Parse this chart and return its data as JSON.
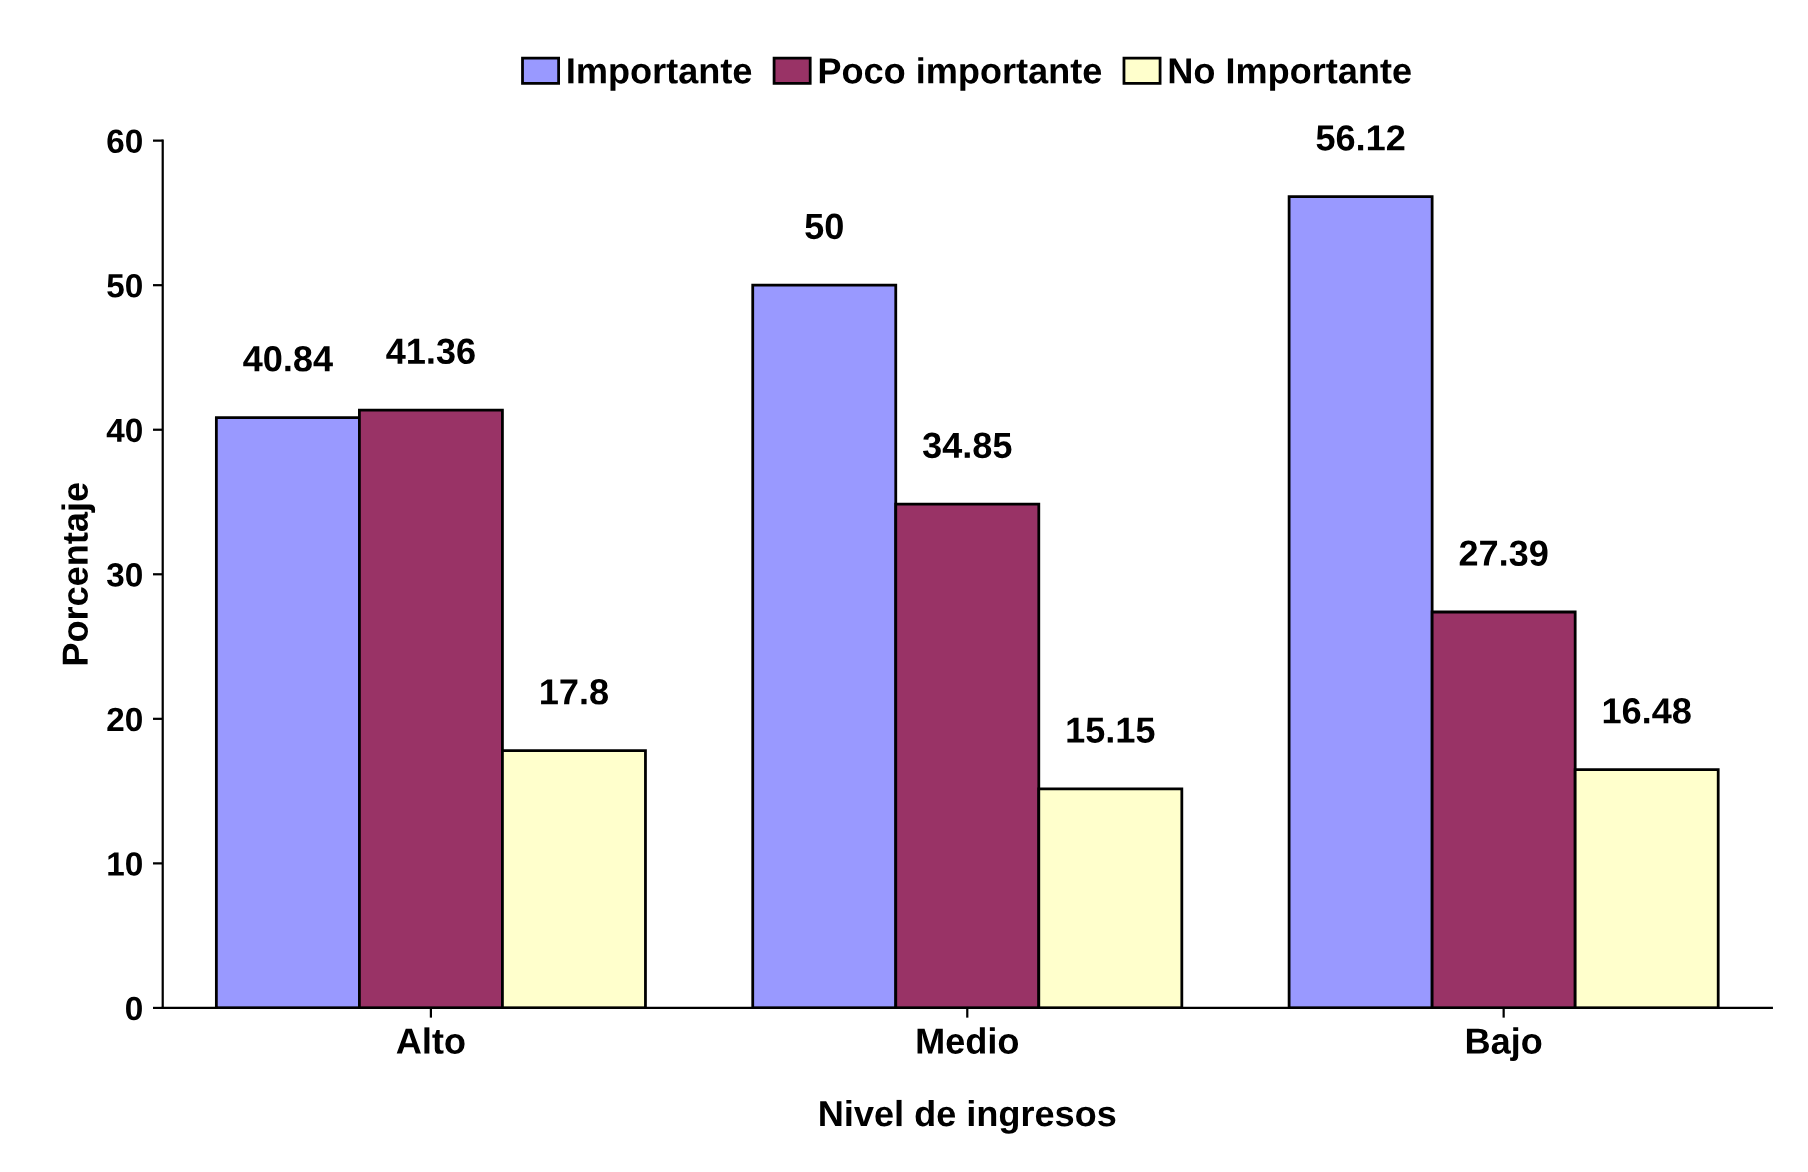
{
  "chart_data": {
    "type": "bar",
    "xlabel": "Nivel de ingresos",
    "ylabel": "Porcentaje",
    "categories": [
      "Alto",
      "Medio",
      "Bajo"
    ],
    "series": [
      {
        "name": "Importante",
        "color": "#9999ff",
        "values": [
          40.84,
          50,
          56.12
        ]
      },
      {
        "name": "Poco importante",
        "color": "#993366",
        "values": [
          41.36,
          34.85,
          27.39
        ]
      },
      {
        "name": "No Importante",
        "color": "#ffffcc",
        "values": [
          17.8,
          15.15,
          16.48
        ]
      }
    ],
    "ylim": [
      0,
      60
    ],
    "yticks": [
      0,
      10,
      20,
      30,
      40,
      50,
      60
    ],
    "data_labels": true,
    "grid": false,
    "legend": "top"
  }
}
